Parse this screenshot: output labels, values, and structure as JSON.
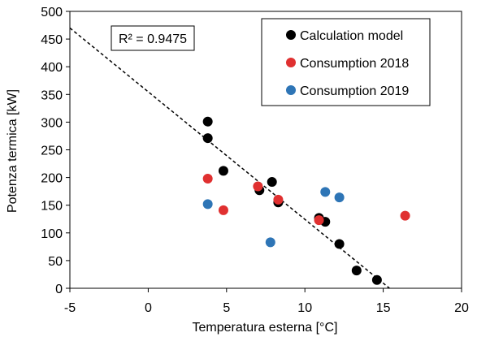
{
  "chart_data": {
    "type": "scatter",
    "xlabel": "Temperatura esterna [°C]",
    "ylabel": "Potenza termica [kW]",
    "xlim": [
      -5,
      20
    ],
    "ylim": [
      0,
      500
    ],
    "xticks": [
      -5,
      0,
      5,
      10,
      15,
      20
    ],
    "yticks": [
      0,
      50,
      100,
      150,
      200,
      250,
      300,
      350,
      400,
      450,
      500
    ],
    "grid": false,
    "legend_position": "top-right",
    "annotation": "R² = 0.9475",
    "trendline": {
      "style": "dashed",
      "color": "#000000",
      "points": [
        [
          -5,
          470
        ],
        [
          15.4,
          0
        ]
      ]
    },
    "series": [
      {
        "name": "Calculation model",
        "color": "#000000",
        "points": [
          [
            3.8,
            301
          ],
          [
            3.8,
            271
          ],
          [
            4.8,
            212
          ],
          [
            7.1,
            177
          ],
          [
            7.9,
            192
          ],
          [
            8.3,
            155
          ],
          [
            10.9,
            127
          ],
          [
            11.3,
            120
          ],
          [
            12.2,
            80
          ],
          [
            13.3,
            32
          ],
          [
            14.6,
            15
          ]
        ]
      },
      {
        "name": "Consumption 2018",
        "color": "#e03030",
        "points": [
          [
            3.8,
            198
          ],
          [
            4.8,
            141
          ],
          [
            7.0,
            184
          ],
          [
            8.3,
            160
          ],
          [
            10.9,
            123
          ],
          [
            16.4,
            131
          ]
        ]
      },
      {
        "name": "Consumption 2019",
        "color": "#2e75b6",
        "points": [
          [
            3.8,
            152
          ],
          [
            7.8,
            83
          ],
          [
            11.3,
            174
          ],
          [
            12.2,
            164
          ]
        ]
      }
    ]
  }
}
